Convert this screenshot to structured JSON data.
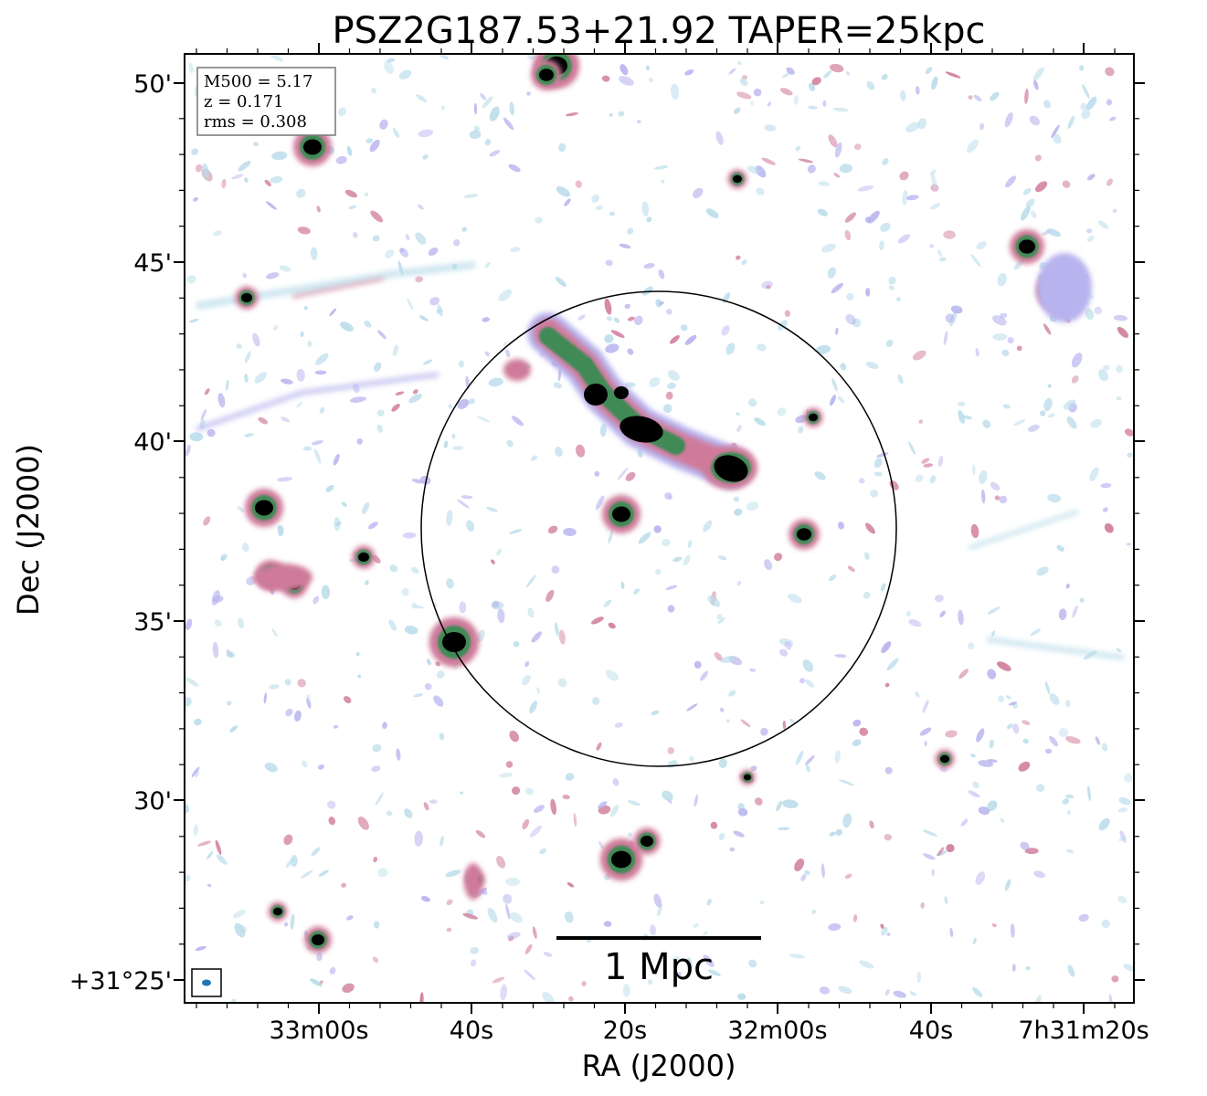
{
  "figure": {
    "title": "PSZ2G187.53+21.92 TAPER=25kpc",
    "xlabel": "RA (J2000)",
    "ylabel": "Dec (J2000)",
    "colors": {
      "faint": "#b9dcea",
      "low": "#b7b3ee",
      "mid": "#cf7a9a",
      "high": "#3f8a56",
      "peak": "#000000",
      "beam": "#1f77b4"
    }
  },
  "info_box": {
    "m500": "M500 = 5.17",
    "z": "z = 0.171",
    "rms": "rms = 0.308"
  },
  "scale_bar": {
    "label": "1 Mpc"
  },
  "chart_data": {
    "type": "radio map",
    "x_ticks": [
      "33m00s",
      "40s",
      "20s",
      "32m00s",
      "40s",
      "7h31m20s"
    ],
    "y_ticks": [
      "+31°25'",
      "30'",
      "35'",
      "40'",
      "45'",
      "50'"
    ]
  },
  "beam": {
    "icon": "beam-ellipse-icon"
  }
}
